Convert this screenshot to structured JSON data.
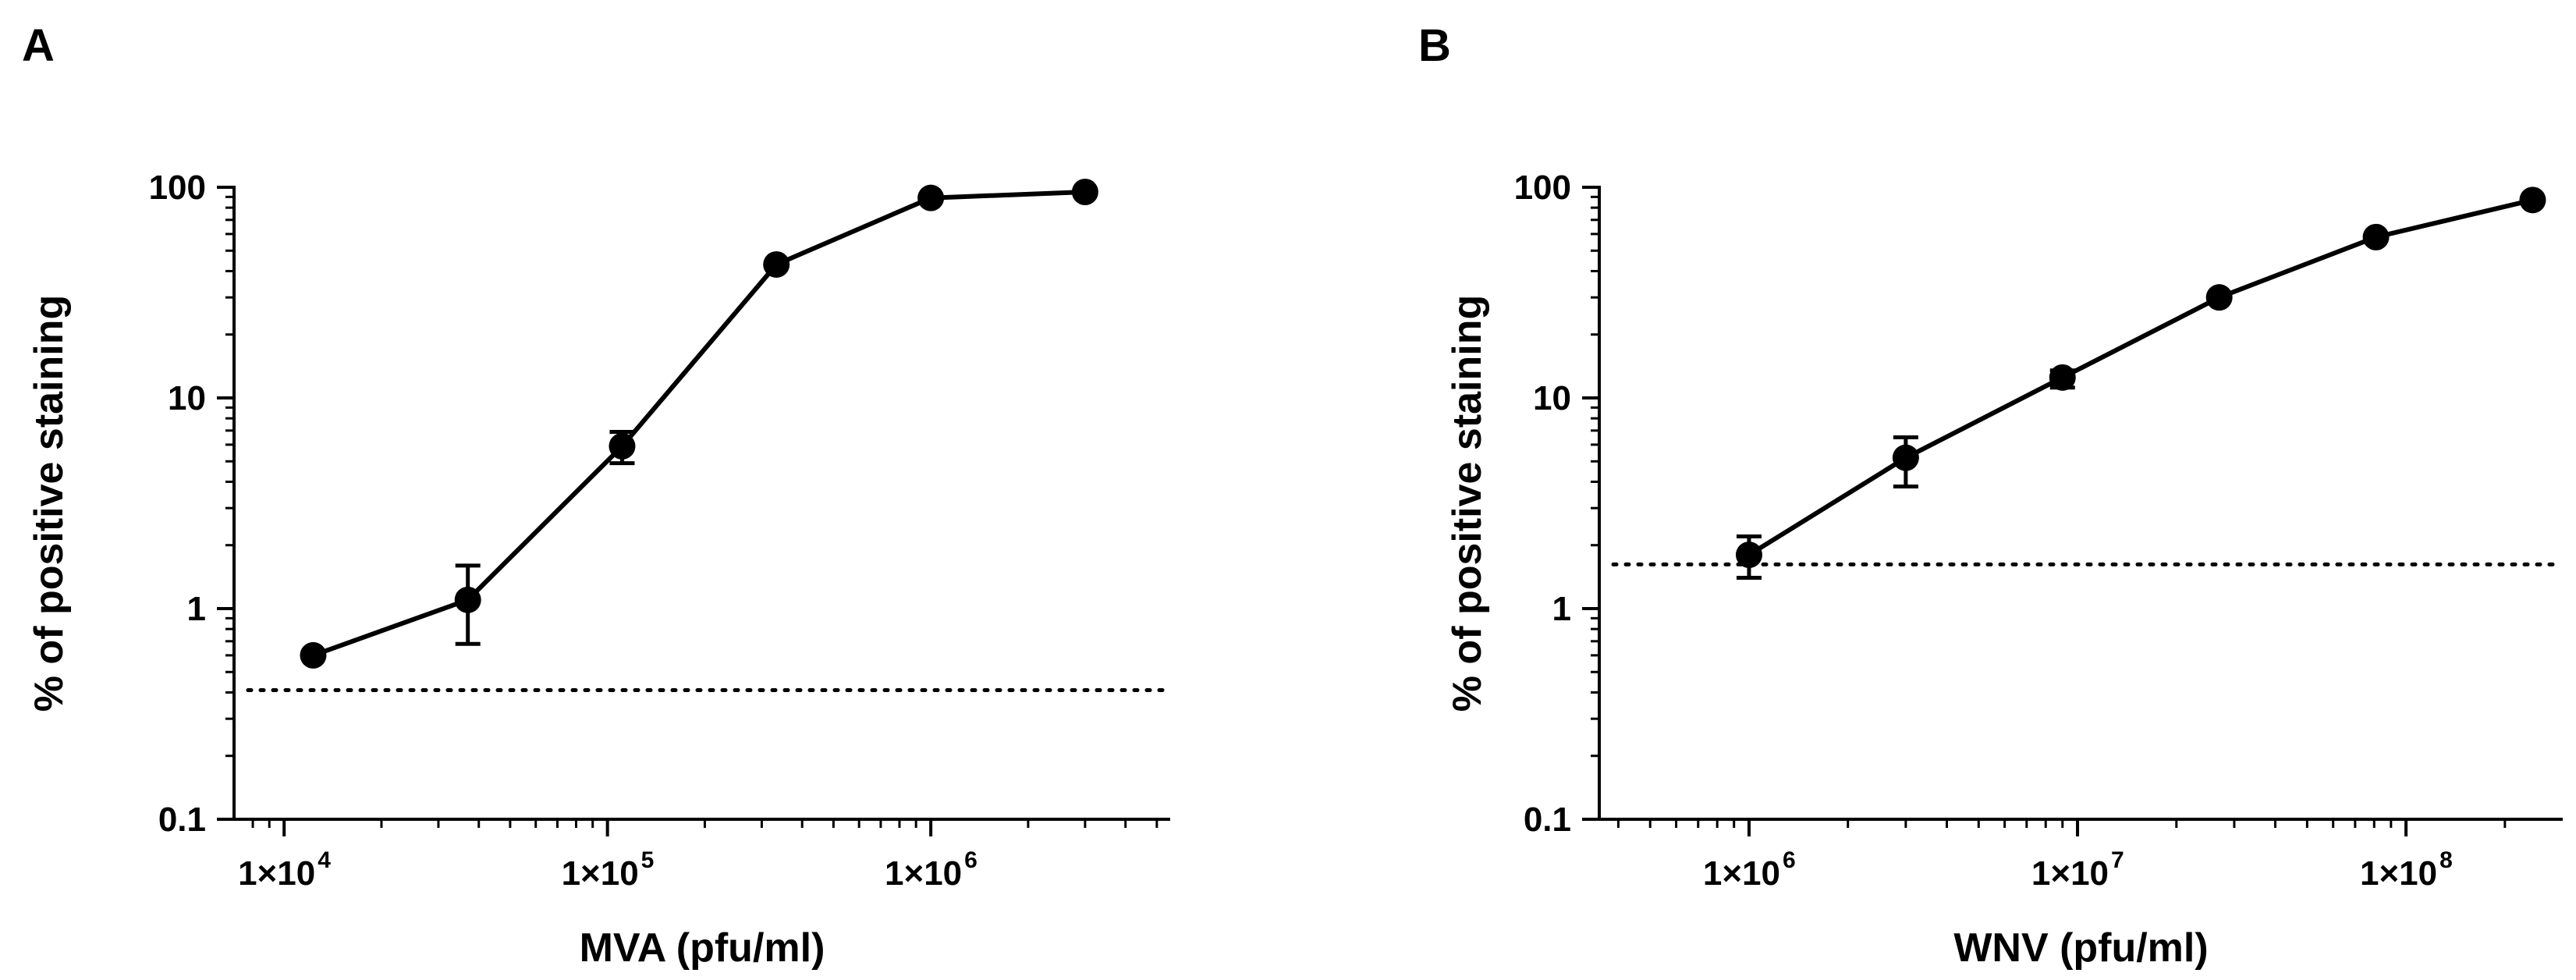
{
  "chart_data": [
    {
      "type": "line",
      "panel_label": "A",
      "title": "",
      "xlabel": "MVA (pfu/ml)",
      "ylabel": "% of positive staining",
      "xscale": "log",
      "yscale": "log",
      "xlim": [
        7000,
        5500000
      ],
      "ylim": [
        0.1,
        100
      ],
      "grid": false,
      "yticks": [
        {
          "value": 0.1,
          "label": "0.1"
        },
        {
          "value": 1,
          "label": "1"
        },
        {
          "value": 10,
          "label": "10"
        },
        {
          "value": 100,
          "label": "100"
        }
      ],
      "xticks": [
        {
          "value": 10000,
          "label": "1×10",
          "exp": "4"
        },
        {
          "value": 100000,
          "label": "1×10",
          "exp": "5"
        },
        {
          "value": 1000000,
          "label": "1×10",
          "exp": "6"
        }
      ],
      "series": [
        {
          "name": "MVA",
          "x": [
            12300,
            37000,
            111000,
            333000,
            1000000,
            3000000
          ],
          "y": [
            0.6,
            1.1,
            5.9,
            43,
            89,
            95
          ],
          "err_low": [
            0.6,
            0.68,
            4.9,
            43,
            89,
            95
          ],
          "err_high": [
            0.6,
            1.6,
            6.9,
            43,
            89,
            95
          ]
        }
      ],
      "reference_line": {
        "y": 0.41,
        "style": "dotted"
      }
    },
    {
      "type": "line",
      "panel_label": "B",
      "title": "",
      "xlabel": "WNV (pfu/ml)",
      "ylabel": "% of positive staining",
      "xscale": "log",
      "yscale": "log",
      "xlim": [
        350000,
        300000000
      ],
      "ylim": [
        0.1,
        100
      ],
      "grid": false,
      "yticks": [
        {
          "value": 0.1,
          "label": "0.1"
        },
        {
          "value": 1,
          "label": "1"
        },
        {
          "value": 10,
          "label": "10"
        },
        {
          "value": 100,
          "label": "100"
        }
      ],
      "xticks": [
        {
          "value": 1000000,
          "label": "1×10",
          "exp": "6"
        },
        {
          "value": 10000000,
          "label": "1×10",
          "exp": "7"
        },
        {
          "value": 100000000,
          "label": "1×10",
          "exp": "8"
        }
      ],
      "series": [
        {
          "name": "WNV",
          "x": [
            1000000,
            3000000,
            9000000,
            27000000,
            81000000,
            243000000
          ],
          "y": [
            1.8,
            5.2,
            12.5,
            30,
            58,
            87
          ],
          "err_low": [
            1.4,
            3.8,
            11.2,
            30,
            58,
            87
          ],
          "err_high": [
            2.2,
            6.5,
            13.5,
            30,
            58,
            87
          ]
        }
      ],
      "reference_line": {
        "y": 1.62,
        "style": "dotted"
      }
    }
  ]
}
